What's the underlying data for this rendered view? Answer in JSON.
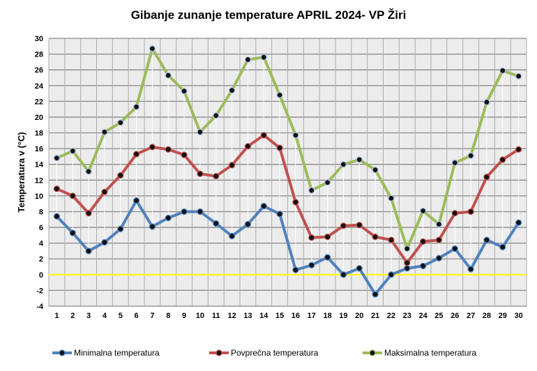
{
  "chart_data": {
    "type": "line",
    "title": "Gibanje zunanje temperature APRIL 2024- VP Žiri",
    "xlabel": "",
    "ylabel": "Temperatura v (°C)",
    "ylim": [
      -4,
      30
    ],
    "yticks": [
      -4,
      -2,
      0,
      2,
      4,
      6,
      8,
      10,
      12,
      14,
      16,
      18,
      20,
      22,
      24,
      26,
      28,
      30
    ],
    "categories": [
      "1",
      "2",
      "3",
      "4",
      "5",
      "6",
      "7",
      "8",
      "9",
      "10",
      "11",
      "12",
      "13",
      "14",
      "15",
      "16",
      "17",
      "18",
      "19",
      "20",
      "21",
      "22",
      "23",
      "24",
      "25",
      "26",
      "27",
      "28",
      "29",
      "30"
    ],
    "grid": true,
    "legend_position": "bottom",
    "zero_line_color": "#ffff00",
    "series": [
      {
        "name": "Minimalna temperatura",
        "color": "#4f81bd",
        "values": [
          7.4,
          5.3,
          3.0,
          4.1,
          5.8,
          9.4,
          6.1,
          7.2,
          8.0,
          8.0,
          6.5,
          4.9,
          6.4,
          8.7,
          7.7,
          0.6,
          1.2,
          2.2,
          0.0,
          0.8,
          -2.5,
          0.0,
          0.8,
          1.1,
          2.1,
          3.3,
          0.7,
          4.4,
          3.5,
          6.6
        ]
      },
      {
        "name": "Povprečna temperatura",
        "color": "#c0504d",
        "values": [
          10.9,
          10.0,
          7.8,
          10.5,
          12.6,
          15.3,
          16.2,
          15.9,
          15.2,
          12.8,
          12.5,
          13.9,
          16.3,
          17.7,
          16.1,
          9.2,
          4.7,
          4.8,
          6.2,
          6.3,
          4.8,
          4.4,
          1.5,
          4.2,
          4.4,
          7.8,
          8.0,
          12.4,
          14.6,
          15.9
        ]
      },
      {
        "name": "Maksimalna temperatura",
        "color": "#9bbb59",
        "values": [
          14.8,
          15.7,
          13.1,
          18.1,
          19.3,
          21.3,
          28.7,
          25.3,
          23.3,
          18.1,
          20.2,
          23.4,
          27.3,
          27.6,
          22.8,
          17.7,
          10.7,
          11.7,
          14.0,
          14.6,
          13.3,
          9.7,
          3.3,
          8.1,
          6.4,
          14.2,
          15.1,
          21.9,
          25.9,
          25.2
        ]
      }
    ]
  }
}
